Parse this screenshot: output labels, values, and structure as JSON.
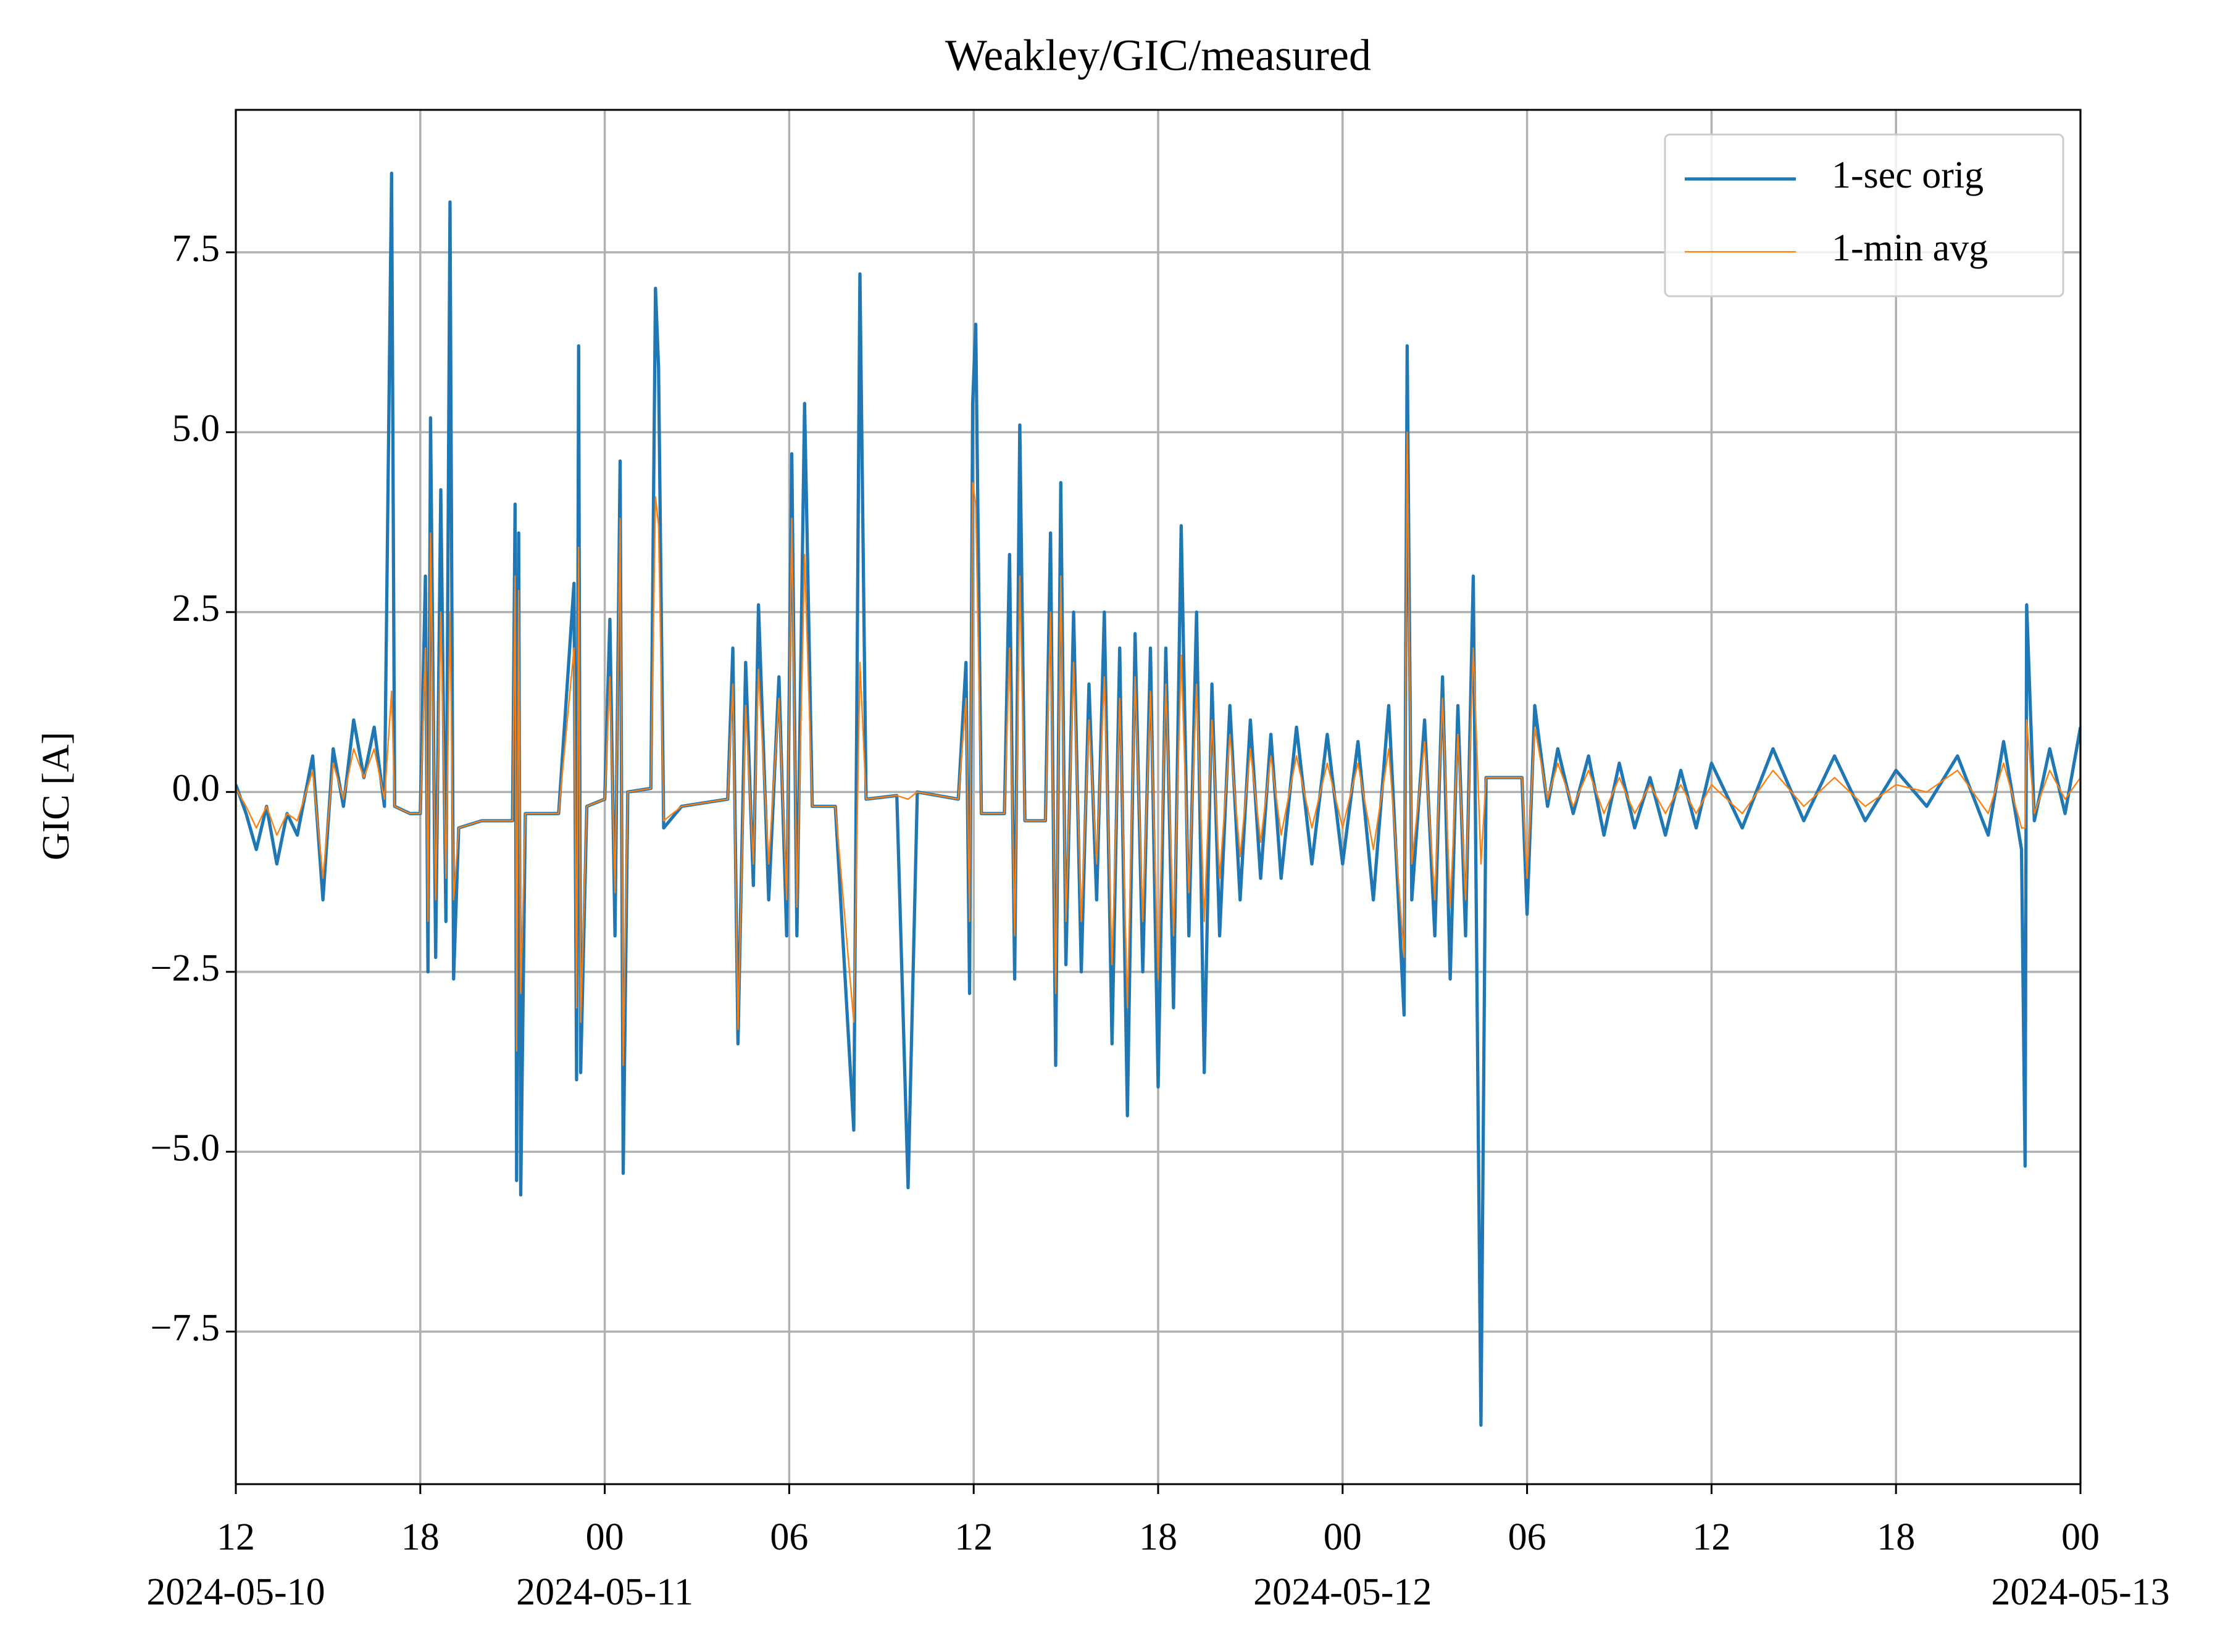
{
  "chart_data": {
    "type": "line",
    "title": "Weakley/GIC/measured",
    "y_label": "GIC [A]",
    "x": [
      "2024-05-10 12:00",
      "2024-05-10 12:20",
      "2024-05-10 12:40",
      "2024-05-10 13:00",
      "2024-05-10 13:20",
      "2024-05-10 13:40",
      "2024-05-10 14:00",
      "2024-05-10 14:30",
      "2024-05-10 14:50",
      "2024-05-10 15:10",
      "2024-05-10 15:30",
      "2024-05-10 15:50",
      "2024-05-10 16:10",
      "2024-05-10 16:30",
      "2024-05-10 16:50",
      "2024-05-10 17:04",
      "2024-05-10 17:10",
      "2024-05-10 17:40",
      "2024-05-10 18:00",
      "2024-05-10 18:10",
      "2024-05-10 18:15",
      "2024-05-10 18:20",
      "2024-05-10 18:30",
      "2024-05-10 18:40",
      "2024-05-10 18:50",
      "2024-05-10 18:58",
      "2024-05-10 19:05",
      "2024-05-10 19:15",
      "2024-05-10 20:00",
      "2024-05-10 21:00",
      "2024-05-10 21:05",
      "2024-05-10 21:08",
      "2024-05-10 21:12",
      "2024-05-10 21:16",
      "2024-05-10 21:25",
      "2024-05-10 22:30",
      "2024-05-10 23:00",
      "2024-05-10 23:05",
      "2024-05-10 23:09",
      "2024-05-10 23:13",
      "2024-05-10 23:25",
      "2024-05-11 00:00",
      "2024-05-11 00:10",
      "2024-05-11 00:20",
      "2024-05-11 00:30",
      "2024-05-11 00:36",
      "2024-05-11 00:45",
      "2024-05-11 01:30",
      "2024-05-11 01:39",
      "2024-05-11 01:45",
      "2024-05-11 01:55",
      "2024-05-11 02:30",
      "2024-05-11 04:00",
      "2024-05-11 04:10",
      "2024-05-11 04:20",
      "2024-05-11 04:35",
      "2024-05-11 04:50",
      "2024-05-11 05:00",
      "2024-05-11 05:20",
      "2024-05-11 05:40",
      "2024-05-11 05:55",
      "2024-05-11 06:05",
      "2024-05-11 06:15",
      "2024-05-11 06:30",
      "2024-05-11 06:45",
      "2024-05-11 07:30",
      "2024-05-11 08:06",
      "2024-05-11 08:18",
      "2024-05-11 08:30",
      "2024-05-11 09:30",
      "2024-05-11 09:52",
      "2024-05-11 10:10",
      "2024-05-11 11:30",
      "2024-05-11 11:45",
      "2024-05-11 11:52",
      "2024-05-11 11:58",
      "2024-05-11 12:04",
      "2024-05-11 12:15",
      "2024-05-11 13:00",
      "2024-05-11 13:10",
      "2024-05-11 13:20",
      "2024-05-11 13:30",
      "2024-05-11 13:40",
      "2024-05-11 14:20",
      "2024-05-11 14:30",
      "2024-05-11 14:40",
      "2024-05-11 14:50",
      "2024-05-11 15:00",
      "2024-05-11 15:15",
      "2024-05-11 15:30",
      "2024-05-11 15:45",
      "2024-05-11 16:00",
      "2024-05-11 16:15",
      "2024-05-11 16:30",
      "2024-05-11 16:45",
      "2024-05-11 17:00",
      "2024-05-11 17:15",
      "2024-05-11 17:30",
      "2024-05-11 17:45",
      "2024-05-11 18:00",
      "2024-05-11 18:15",
      "2024-05-11 18:30",
      "2024-05-11 18:45",
      "2024-05-11 19:00",
      "2024-05-11 19:15",
      "2024-05-11 19:30",
      "2024-05-11 19:45",
      "2024-05-11 20:00",
      "2024-05-11 20:20",
      "2024-05-11 20:40",
      "2024-05-11 21:00",
      "2024-05-11 21:20",
      "2024-05-11 21:40",
      "2024-05-11 22:00",
      "2024-05-11 22:30",
      "2024-05-11 23:00",
      "2024-05-11 23:30",
      "2024-05-12 00:00",
      "2024-05-12 00:30",
      "2024-05-12 01:00",
      "2024-05-12 01:30",
      "2024-05-12 02:00",
      "2024-05-12 02:06",
      "2024-05-12 02:15",
      "2024-05-12 02:40",
      "2024-05-12 03:00",
      "2024-05-12 03:15",
      "2024-05-12 03:30",
      "2024-05-12 03:45",
      "2024-05-12 04:00",
      "2024-05-12 04:15",
      "2024-05-12 04:30",
      "2024-05-12 04:40",
      "2024-05-12 05:50",
      "2024-05-12 06:00",
      "2024-05-12 06:15",
      "2024-05-12 06:40",
      "2024-05-12 07:00",
      "2024-05-12 07:30",
      "2024-05-12 08:00",
      "2024-05-12 08:30",
      "2024-05-12 09:00",
      "2024-05-12 09:30",
      "2024-05-12 10:00",
      "2024-05-12 10:30",
      "2024-05-12 11:00",
      "2024-05-12 11:30",
      "2024-05-12 12:00",
      "2024-05-12 13:00",
      "2024-05-12 14:00",
      "2024-05-12 15:00",
      "2024-05-12 16:00",
      "2024-05-12 17:00",
      "2024-05-12 18:00",
      "2024-05-12 19:00",
      "2024-05-12 20:00",
      "2024-05-12 21:00",
      "2024-05-12 21:30",
      "2024-05-12 22:05",
      "2024-05-12 22:12",
      "2024-05-12 22:15",
      "2024-05-12 22:30",
      "2024-05-12 23:00",
      "2024-05-12 23:30",
      "2024-05-13 00:00"
    ],
    "series": [
      {
        "name": "1-sec orig",
        "color": "#1f77b4",
        "width": 2.3,
        "values": [
          0.1,
          -0.3,
          -0.8,
          -0.2,
          -1.0,
          -0.3,
          -0.6,
          0.5,
          -1.5,
          0.6,
          -0.2,
          1.0,
          0.2,
          0.9,
          -0.2,
          8.6,
          -0.2,
          -0.3,
          -0.3,
          3.0,
          -2.5,
          5.2,
          -2.3,
          4.2,
          -1.8,
          8.2,
          -2.6,
          -0.5,
          -0.4,
          -0.4,
          4.0,
          -5.4,
          3.6,
          -5.6,
          -0.3,
          -0.3,
          2.9,
          -4.0,
          6.2,
          -3.9,
          -0.2,
          -0.1,
          2.4,
          -2.0,
          4.6,
          -5.3,
          0.0,
          0.05,
          7.0,
          5.9,
          -0.5,
          -0.2,
          -0.1,
          2.0,
          -3.5,
          1.8,
          -1.3,
          2.6,
          -1.5,
          1.6,
          -2.0,
          4.7,
          -2.0,
          5.4,
          -0.2,
          -0.2,
          -4.7,
          7.2,
          -0.1,
          -0.05,
          -5.5,
          0.0,
          -0.1,
          1.8,
          -2.8,
          5.4,
          6.5,
          -0.3,
          -0.3,
          3.3,
          -2.6,
          5.1,
          -0.4,
          -0.4,
          3.6,
          -3.8,
          4.3,
          -2.4,
          2.5,
          -2.5,
          1.5,
          -1.5,
          2.5,
          -3.5,
          2.0,
          -4.5,
          2.2,
          -2.5,
          2.0,
          -4.1,
          2.0,
          -3.0,
          3.7,
          -2.0,
          2.5,
          -3.9,
          1.5,
          -2.0,
          1.2,
          -1.5,
          1.0,
          -1.2,
          0.8,
          -1.2,
          0.9,
          -1.0,
          0.8,
          -1.0,
          0.7,
          -1.5,
          1.2,
          -3.1,
          6.2,
          -1.5,
          1.0,
          -2.0,
          1.6,
          -2.6,
          1.2,
          -2.0,
          3.0,
          -8.8,
          0.2,
          0.2,
          -1.7,
          1.2,
          -0.2,
          0.6,
          -0.3,
          0.5,
          -0.6,
          0.4,
          -0.5,
          0.2,
          -0.6,
          0.3,
          -0.5,
          0.4,
          -0.5,
          0.6,
          -0.4,
          0.5,
          -0.4,
          0.3,
          -0.2,
          0.5,
          -0.6,
          0.7,
          -0.8,
          -5.2,
          2.6,
          -0.4,
          0.6,
          -0.3,
          0.9
        ]
      },
      {
        "name": "1-min avg",
        "color": "#ff7f0e",
        "width": 1.0,
        "values": [
          0.05,
          -0.2,
          -0.5,
          -0.2,
          -0.6,
          -0.3,
          -0.4,
          0.3,
          -1.2,
          0.4,
          -0.1,
          0.6,
          0.2,
          0.6,
          -0.1,
          1.4,
          -0.2,
          -0.3,
          -0.3,
          2.0,
          -1.8,
          3.6,
          -1.5,
          2.5,
          -1.2,
          2.5,
          -1.5,
          -0.5,
          -0.4,
          -0.4,
          3.0,
          -3.6,
          2.8,
          -2.8,
          -0.3,
          -0.3,
          2.0,
          -3.0,
          3.4,
          -3.2,
          -0.2,
          -0.1,
          1.6,
          -1.4,
          3.8,
          -3.8,
          0.0,
          0.05,
          4.1,
          3.7,
          -0.4,
          -0.2,
          -0.1,
          1.5,
          -3.3,
          1.2,
          -1.0,
          1.7,
          -1.0,
          1.3,
          -1.5,
          3.8,
          -1.6,
          3.3,
          -0.2,
          -0.2,
          -3.2,
          1.8,
          -0.1,
          -0.05,
          -0.1,
          0.0,
          -0.1,
          1.3,
          -1.8,
          4.3,
          4.0,
          -0.3,
          -0.3,
          2.0,
          -2.0,
          3.0,
          -0.4,
          -0.4,
          2.5,
          -2.8,
          3.0,
          -1.8,
          1.8,
          -1.8,
          1.0,
          -1.0,
          1.6,
          -2.4,
          1.3,
          -3.0,
          1.6,
          -1.8,
          1.4,
          -2.6,
          1.5,
          -2.0,
          1.9,
          -1.4,
          1.5,
          -1.8,
          1.0,
          -1.2,
          0.8,
          -0.9,
          0.6,
          -0.7,
          0.5,
          -0.6,
          0.5,
          -0.5,
          0.4,
          -0.5,
          0.4,
          -0.8,
          0.6,
          -2.3,
          5.0,
          -1.0,
          0.7,
          -1.5,
          1.3,
          -1.6,
          0.8,
          -1.5,
          2.0,
          -1.0,
          0.2,
          0.2,
          -1.2,
          0.9,
          -0.1,
          0.4,
          -0.2,
          0.3,
          -0.3,
          0.2,
          -0.3,
          0.1,
          -0.3,
          0.1,
          -0.3,
          0.1,
          -0.3,
          0.3,
          -0.2,
          0.2,
          -0.2,
          0.1,
          0.0,
          0.3,
          -0.3,
          0.4,
          -0.5,
          -0.5,
          1.0,
          -0.3,
          0.3,
          -0.1,
          0.2
        ]
      }
    ],
    "xlim": [
      "2024-05-10 12:00",
      "2024-05-13 00:00"
    ],
    "xticks": [
      {
        "value": "2024-05-10 12:00",
        "label": "12"
      },
      {
        "value": "2024-05-10 18:00",
        "label": "18"
      },
      {
        "value": "2024-05-11 00:00",
        "label": "00"
      },
      {
        "value": "2024-05-11 06:00",
        "label": "06"
      },
      {
        "value": "2024-05-11 12:00",
        "label": "12"
      },
      {
        "value": "2024-05-11 18:00",
        "label": "18"
      },
      {
        "value": "2024-05-12 00:00",
        "label": "00"
      },
      {
        "value": "2024-05-12 06:00",
        "label": "06"
      },
      {
        "value": "2024-05-12 12:00",
        "label": "12"
      },
      {
        "value": "2024-05-12 18:00",
        "label": "18"
      },
      {
        "value": "2024-05-13 00:00",
        "label": "00"
      }
    ],
    "xtick_dates": [
      {
        "value": "2024-05-10 12:00",
        "label": "2024-05-10"
      },
      {
        "value": "2024-05-11 00:00",
        "label": "2024-05-11"
      },
      {
        "value": "2024-05-12 00:00",
        "label": "2024-05-12"
      },
      {
        "value": "2024-05-13 00:00",
        "label": "2024-05-13"
      }
    ],
    "ylim": [
      -9.62,
      9.48
    ],
    "yticks": [
      {
        "value": -7.5,
        "label": "−7.5"
      },
      {
        "value": -5,
        "label": "−5.0"
      },
      {
        "value": -2.5,
        "label": "−2.5"
      },
      {
        "value": 0,
        "label": "0.0"
      },
      2.5,
      {
        "value": 5,
        "label": "5.0"
      },
      7.5
    ],
    "grid": true,
    "legend": "upper right"
  }
}
